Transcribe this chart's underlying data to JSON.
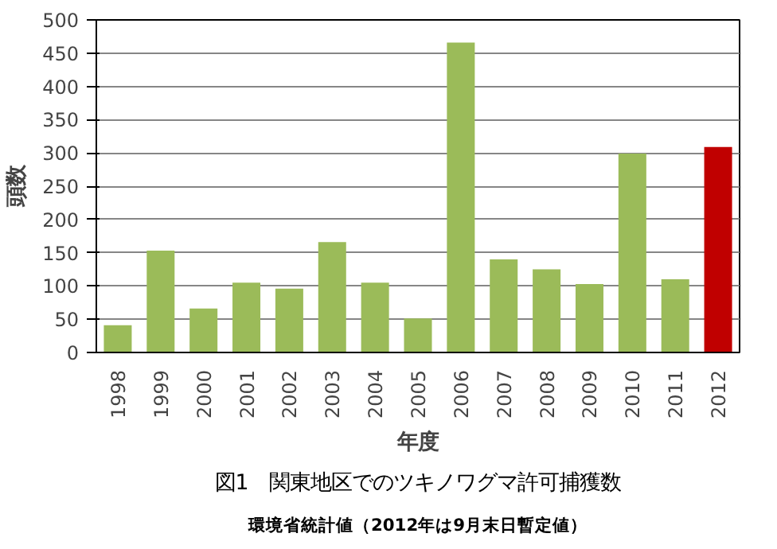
{
  "chart_data": {
    "type": "bar",
    "title": "図1　関東地区でのツキノワグマ許可捕獲数",
    "subtitle": "環境省統計値（2012年は9月末日暫定値）",
    "xlabel": "年度",
    "ylabel": "頭数",
    "categories": [
      "1998",
      "1999",
      "2000",
      "2001",
      "2002",
      "2003",
      "2004",
      "2005",
      "2006",
      "2007",
      "2008",
      "2009",
      "2010",
      "2011",
      "2012"
    ],
    "values": [
      41,
      153,
      66,
      105,
      96,
      166,
      105,
      51,
      466,
      140,
      125,
      103,
      299,
      110,
      309
    ],
    "colors": [
      "#9bbb59",
      "#9bbb59",
      "#9bbb59",
      "#9bbb59",
      "#9bbb59",
      "#9bbb59",
      "#9bbb59",
      "#9bbb59",
      "#9bbb59",
      "#9bbb59",
      "#9bbb59",
      "#9bbb59",
      "#9bbb59",
      "#9bbb59",
      "#c00000"
    ],
    "ylim": [
      0,
      500
    ],
    "yticks": [
      0,
      50,
      100,
      150,
      200,
      250,
      300,
      350,
      400,
      450,
      500
    ],
    "grid": "y"
  }
}
